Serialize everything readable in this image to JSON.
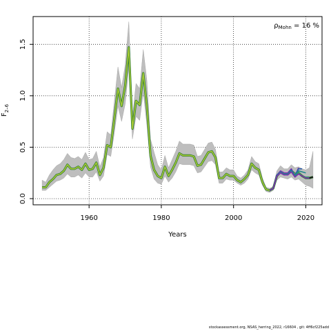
{
  "chart_data": {
    "type": "line",
    "xlabel": "Years",
    "ylabel": "F",
    "ylabel_subscript": "2–6",
    "annotation": {
      "symbol": "ρ",
      "subscript": "Mohn",
      "value_text": " = 16 %"
    },
    "xlim": [
      1944.5,
      2024.5
    ],
    "ylim": [
      -0.06,
      1.77
    ],
    "x_ticks": [
      1960,
      1980,
      2000,
      2020
    ],
    "y_ticks": [
      0.0,
      0.5,
      1.0,
      1.5
    ],
    "y_tick_labels": [
      "0.0",
      "0.5",
      "1.0",
      "1.5"
    ],
    "grid": true,
    "colors": {
      "band": "#bebebe",
      "band_edge": "#a8a8a8",
      "final_run": "#1a1a1a",
      "peels": [
        "#7f2ab0",
        "#2c5ea8",
        "#1f8a8a",
        "#2ca05a",
        "#6ab04c",
        "#a6c835"
      ]
    },
    "series": [
      {
        "x": [
          1947,
          1948,
          1949,
          1950,
          1951,
          1952,
          1953,
          1954,
          1955,
          1956,
          1957,
          1958,
          1959,
          1960,
          1961,
          1962,
          1963,
          1964,
          1965,
          1966,
          1967,
          1968,
          1969,
          1970,
          1971,
          1972,
          1973,
          1974,
          1975,
          1976,
          1977,
          1978,
          1979,
          1980,
          1981,
          1982,
          1983,
          1984,
          1985,
          1986,
          1987,
          1988,
          1989,
          1990,
          1991,
          1992,
          1993,
          1994,
          1995,
          1996,
          1997,
          1998,
          1999,
          2000,
          2001,
          2002,
          2003,
          2004,
          2005,
          2006,
          2007,
          2008,
          2009,
          2010,
          2011,
          2012,
          2013,
          2014,
          2015,
          2016,
          2017,
          2018,
          2019,
          2020,
          2021,
          2022
        ],
        "y": [
          0.11,
          0.11,
          0.16,
          0.19,
          0.23,
          0.24,
          0.27,
          0.33,
          0.29,
          0.29,
          0.31,
          0.28,
          0.34,
          0.28,
          0.29,
          0.35,
          0.23,
          0.3,
          0.52,
          0.5,
          0.78,
          1.07,
          0.9,
          1.1,
          1.47,
          0.68,
          0.95,
          0.91,
          1.22,
          0.9,
          0.42,
          0.28,
          0.22,
          0.2,
          0.31,
          0.22,
          0.28,
          0.35,
          0.44,
          0.42,
          0.42,
          0.42,
          0.41,
          0.32,
          0.33,
          0.39,
          0.45,
          0.46,
          0.4,
          0.2,
          0.2,
          0.24,
          0.22,
          0.22,
          0.18,
          0.16,
          0.19,
          0.23,
          0.34,
          0.3,
          0.28,
          0.16,
          0.09,
          0.08,
          0.1,
          0.22,
          0.26,
          0.24,
          0.24,
          0.27,
          0.24,
          0.25,
          0.22,
          0.2,
          0.2,
          0.21
        ],
        "lower": [
          0.08,
          0.08,
          0.11,
          0.14,
          0.17,
          0.18,
          0.2,
          0.24,
          0.21,
          0.21,
          0.23,
          0.2,
          0.25,
          0.21,
          0.21,
          0.26,
          0.17,
          0.22,
          0.43,
          0.41,
          0.64,
          0.9,
          0.75,
          0.92,
          1.27,
          0.58,
          0.8,
          0.76,
          1.03,
          0.72,
          0.31,
          0.19,
          0.15,
          0.14,
          0.22,
          0.16,
          0.2,
          0.26,
          0.34,
          0.33,
          0.33,
          0.33,
          0.32,
          0.25,
          0.26,
          0.31,
          0.36,
          0.37,
          0.33,
          0.15,
          0.15,
          0.19,
          0.18,
          0.18,
          0.15,
          0.13,
          0.15,
          0.19,
          0.28,
          0.25,
          0.23,
          0.13,
          0.07,
          0.06,
          0.08,
          0.18,
          0.21,
          0.2,
          0.19,
          0.21,
          0.18,
          0.19,
          0.16,
          0.13,
          0.12,
          0.1
        ],
        "upper": [
          0.18,
          0.16,
          0.23,
          0.28,
          0.32,
          0.34,
          0.38,
          0.44,
          0.4,
          0.39,
          0.41,
          0.38,
          0.45,
          0.38,
          0.39,
          0.46,
          0.31,
          0.4,
          0.65,
          0.62,
          0.95,
          1.28,
          1.08,
          1.3,
          1.72,
          0.8,
          1.12,
          1.07,
          1.45,
          1.15,
          0.58,
          0.45,
          0.33,
          0.28,
          0.42,
          0.3,
          0.38,
          0.46,
          0.56,
          0.53,
          0.53,
          0.53,
          0.52,
          0.41,
          0.42,
          0.48,
          0.54,
          0.55,
          0.48,
          0.26,
          0.26,
          0.3,
          0.28,
          0.28,
          0.22,
          0.2,
          0.23,
          0.28,
          0.41,
          0.36,
          0.34,
          0.2,
          0.11,
          0.1,
          0.12,
          0.27,
          0.32,
          0.29,
          0.29,
          0.33,
          0.3,
          0.31,
          0.29,
          0.28,
          0.3,
          0.46
        ]
      },
      {
        "x": [
          2010,
          2011,
          2012,
          2013,
          2014,
          2015,
          2016,
          2017,
          2018
        ],
        "y": [
          0.08,
          0.1,
          0.23,
          0.27,
          0.25,
          0.25,
          0.29,
          0.22,
          0.3
        ]
      },
      {
        "x": [
          2010,
          2011,
          2012,
          2013,
          2014,
          2015,
          2016,
          2017,
          2018,
          2019
        ],
        "y": [
          0.08,
          0.1,
          0.23,
          0.26,
          0.24,
          0.24,
          0.28,
          0.23,
          0.29,
          0.29
        ]
      },
      {
        "x": [
          2010,
          2011,
          2012,
          2013,
          2014,
          2015,
          2016,
          2017,
          2018,
          2019,
          2020
        ],
        "y": [
          0.08,
          0.1,
          0.22,
          0.26,
          0.24,
          0.24,
          0.27,
          0.22,
          0.27,
          0.26,
          0.25
        ]
      },
      {
        "x": [
          2010,
          2011,
          2012,
          2013,
          2014,
          2015,
          2016,
          2017,
          2018,
          2019,
          2020,
          2021
        ],
        "y": [
          0.08,
          0.1,
          0.22,
          0.25,
          0.23,
          0.23,
          0.26,
          0.21,
          0.25,
          0.22,
          0.21,
          0.21
        ]
      },
      {
        "x": [
          2010,
          2011,
          2012,
          2013,
          2014,
          2015,
          2016,
          2017,
          2018,
          2019,
          2020,
          2021,
          2022
        ],
        "y": [
          0.08,
          0.1,
          0.22,
          0.25,
          0.23,
          0.23,
          0.26,
          0.21,
          0.24,
          0.22,
          0.2,
          0.2,
          0.21
        ]
      }
    ]
  },
  "footer": {
    "caption": "stockassessment.org,  NSAS_herring_2022,  r16604 ,  git:  4ff6cf225add"
  }
}
